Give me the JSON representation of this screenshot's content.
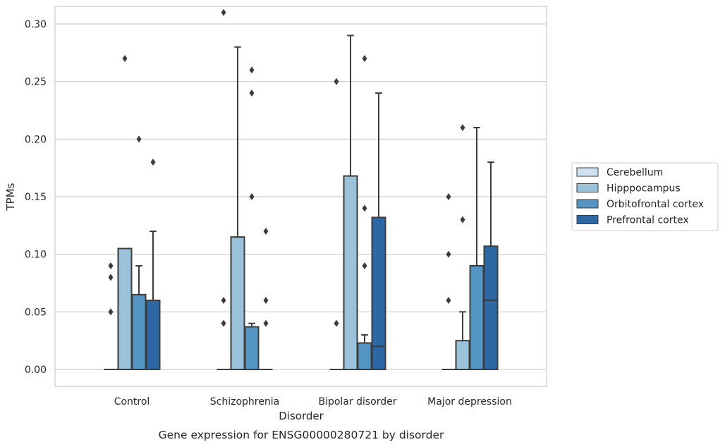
{
  "chart_data": {
    "type": "boxplot",
    "caption": "Gene expression for ENSG00000280721 by disorder",
    "xlabel": "Disorder",
    "ylabel": "TPMs",
    "ylim": [
      -0.015,
      0.325
    ],
    "yticks": [
      0.0,
      0.05,
      0.1,
      0.15,
      0.2,
      0.25,
      0.3
    ],
    "ytick_labels": [
      "0.00",
      "0.05",
      "0.10",
      "0.15",
      "0.20",
      "0.25",
      "0.30"
    ],
    "categories": [
      "Control",
      "Schizophrenia",
      "Bipolar disorder",
      "Major depression"
    ],
    "grid": "horizontal",
    "legend_position": "right",
    "series": [
      {
        "name": "Cerebellum",
        "color": "#d0e1f0",
        "boxes": [
          {
            "q1": 0.0,
            "median": 0.0,
            "q3": 0.0,
            "whisker_low": 0.0,
            "whisker_high": 0.0,
            "outliers": []
          },
          {
            "q1": 0.0,
            "median": 0.0,
            "q3": 0.0,
            "whisker_low": 0.0,
            "whisker_high": 0.0,
            "outliers": []
          },
          {
            "q1": 0.0,
            "median": 0.0,
            "q3": 0.0,
            "whisker_low": 0.0,
            "whisker_high": 0.0,
            "outliers": []
          },
          {
            "q1": 0.0,
            "median": 0.0,
            "q3": 0.0,
            "whisker_low": 0.0,
            "whisker_high": 0.0,
            "outliers": []
          }
        ]
      },
      {
        "name": "Hipppocampus",
        "color": "#9ac2da",
        "boxes": [
          {
            "q1": 0.0,
            "median": 0.0,
            "q3": 0.105,
            "whisker_low": 0.0,
            "whisker_high": 0.105,
            "outliers": [
              0.27
            ]
          },
          {
            "q1": 0.0,
            "median": 0.0,
            "q3": 0.115,
            "whisker_low": 0.0,
            "whisker_high": 0.28,
            "outliers": []
          },
          {
            "q1": 0.0,
            "median": 0.0,
            "q3": 0.168,
            "whisker_low": 0.0,
            "whisker_high": 0.29,
            "outliers": []
          },
          {
            "q1": 0.0,
            "median": 0.0,
            "q3": 0.025,
            "whisker_low": 0.0,
            "whisker_high": 0.05,
            "outliers": [
              0.13
            ]
          }
        ]
      },
      {
        "name": "Orbitofrontal cortex",
        "color": "#5595c3",
        "boxes": [
          {
            "q1": 0.0,
            "median": 0.0,
            "q3": 0.065,
            "whisker_low": 0.0,
            "whisker_high": 0.09,
            "outliers": [
              0.2
            ]
          },
          {
            "q1": 0.0,
            "median": 0.0,
            "q3": 0.037,
            "whisker_low": 0.0,
            "whisker_high": 0.04,
            "outliers": []
          },
          {
            "q1": 0.0,
            "median": 0.0,
            "q3": 0.023,
            "whisker_low": 0.0,
            "whisker_high": 0.03,
            "outliers": []
          },
          {
            "q1": 0.0,
            "median": 0.0,
            "q3": 0.09,
            "whisker_low": 0.0,
            "whisker_high": 0.21,
            "outliers": []
          }
        ]
      },
      {
        "name": "Prefrontal cortex",
        "color": "#2d67a4",
        "boxes": [
          {
            "q1": 0.0,
            "median": 0.0,
            "q3": 0.06,
            "whisker_low": 0.0,
            "whisker_high": 0.12,
            "outliers": []
          },
          {
            "q1": 0.0,
            "median": 0.0,
            "q3": 0.0,
            "whisker_low": 0.0,
            "whisker_high": 0.0,
            "outliers": []
          },
          {
            "q1": 0.0,
            "median": 0.02,
            "q3": 0.132,
            "whisker_low": 0.0,
            "whisker_high": 0.24,
            "outliers": []
          },
          {
            "q1": 0.0,
            "median": 0.06,
            "q3": 0.107,
            "whisker_low": 0.0,
            "whisker_high": 0.18,
            "outliers": []
          }
        ]
      }
    ],
    "extra_outliers": [
      {
        "category": "Control",
        "x_series": "Cerebellum",
        "values": [
          0.05,
          0.08,
          0.09
        ]
      },
      {
        "category": "Control",
        "x_series": "Prefrontal cortex",
        "values": [
          0.18
        ]
      },
      {
        "category": "Schizophrenia",
        "x_series": "Cerebellum",
        "values": [
          0.04,
          0.06,
          0.31
        ]
      },
      {
        "category": "Schizophrenia",
        "x_series": "Orbitofrontal cortex",
        "values": [
          0.15,
          0.24,
          0.26
        ]
      },
      {
        "category": "Schizophrenia",
        "x_series": "Prefrontal cortex",
        "values": [
          0.04,
          0.06,
          0.12
        ]
      },
      {
        "category": "Bipolar disorder",
        "x_series": "Cerebellum",
        "values": [
          0.04,
          0.25
        ]
      },
      {
        "category": "Bipolar disorder",
        "x_series": "Orbitofrontal cortex",
        "values": [
          0.09,
          0.14,
          0.27
        ]
      },
      {
        "category": "Major depression",
        "x_series": "Cerebellum",
        "values": [
          0.06,
          0.1,
          0.15
        ]
      },
      {
        "category": "Major depression",
        "x_series": "Hipppocampus",
        "values": [
          0.21
        ]
      }
    ]
  }
}
